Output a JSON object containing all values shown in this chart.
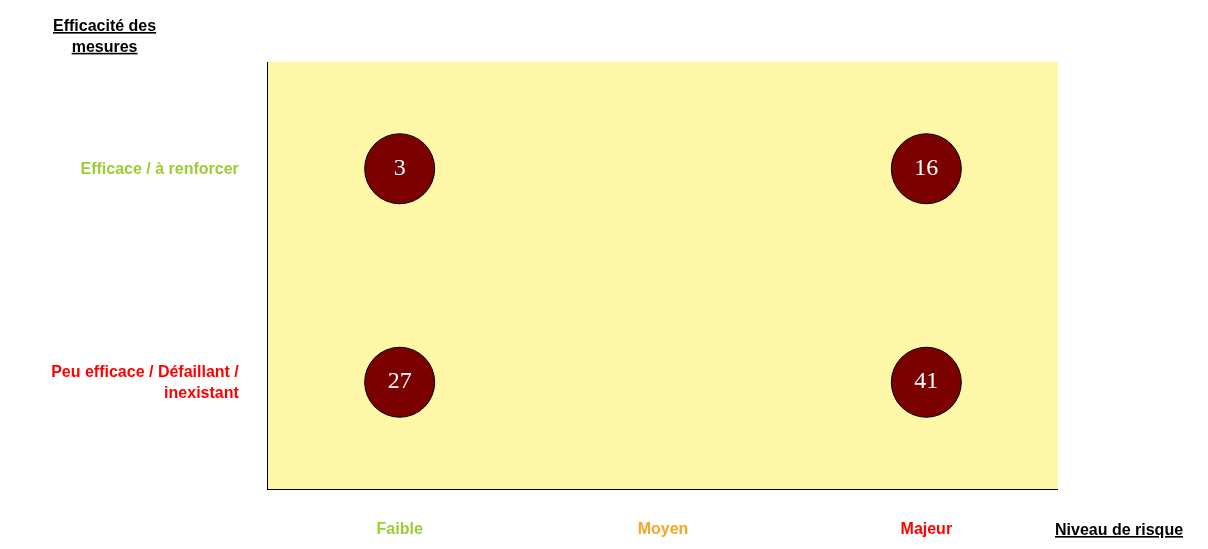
{
  "chart_data": {
    "type": "heatmap",
    "xlabel": "Niveau de risque",
    "ylabel": "Efficacité des mesures",
    "categories": [
      "Faible",
      "Moyen",
      "Majeur"
    ],
    "y_categories": [
      "Efficace / à renforcer",
      "Peu efficace / Défaillant / inexistant"
    ],
    "data_labels": true,
    "cells": [
      [
        3,
        null,
        16
      ],
      [
        27,
        null,
        41
      ]
    ]
  }
}
